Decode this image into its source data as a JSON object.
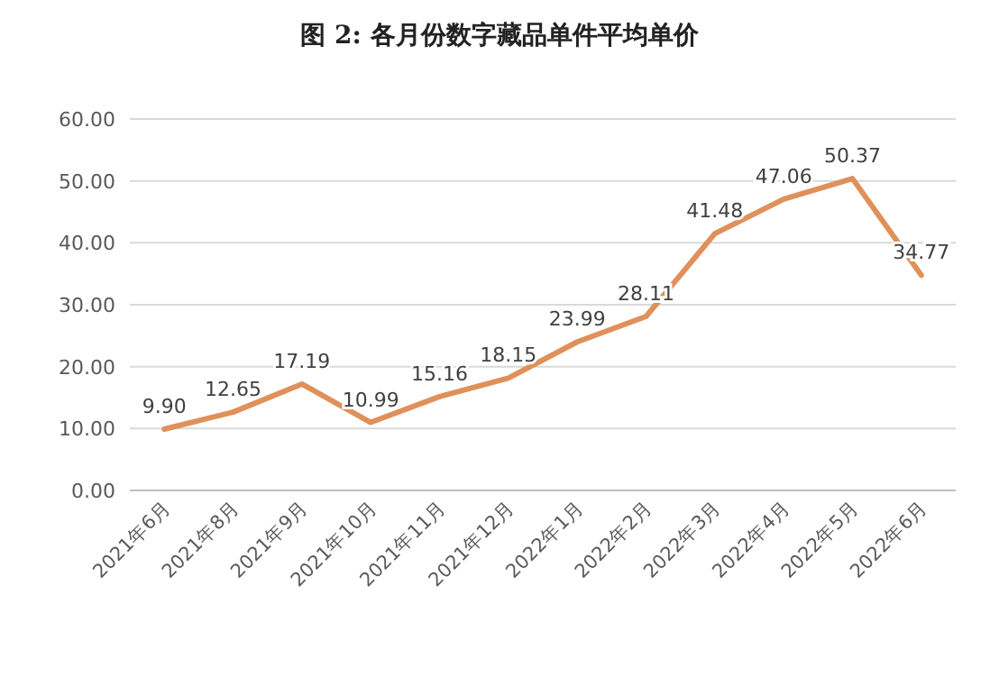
{
  "chart_data": {
    "type": "line",
    "title": "图 2: 各月份数字藏品单件平均单价",
    "categories": [
      "2021年6月",
      "2021年8月",
      "2021年9月",
      "2021年10月",
      "2021年11月",
      "2021年12月",
      "2022年1月",
      "2022年2月",
      "2022年3月",
      "2022年4月",
      "2022年5月",
      "2022年6月"
    ],
    "values": [
      9.9,
      12.65,
      17.19,
      10.99,
      15.16,
      18.15,
      23.99,
      28.11,
      41.48,
      47.06,
      50.37,
      34.77
    ],
    "value_labels": [
      "9.90",
      "12.65",
      "17.19",
      "10.99",
      "15.16",
      "18.15",
      "23.99",
      "28.11",
      "41.48",
      "47.06",
      "50.37",
      "34.77"
    ],
    "color": "#e0905a",
    "ylim": [
      0,
      60
    ],
    "yticks": [
      {
        "value": 0,
        "label": "0.00"
      },
      {
        "value": 10,
        "label": "10.00"
      },
      {
        "value": 20,
        "label": "20.00"
      },
      {
        "value": 30,
        "label": "30.00"
      },
      {
        "value": 40,
        "label": "40.00"
      },
      {
        "value": 50,
        "label": "50.00"
      },
      {
        "value": 60,
        "label": "60.00"
      }
    ],
    "grid": "y"
  }
}
